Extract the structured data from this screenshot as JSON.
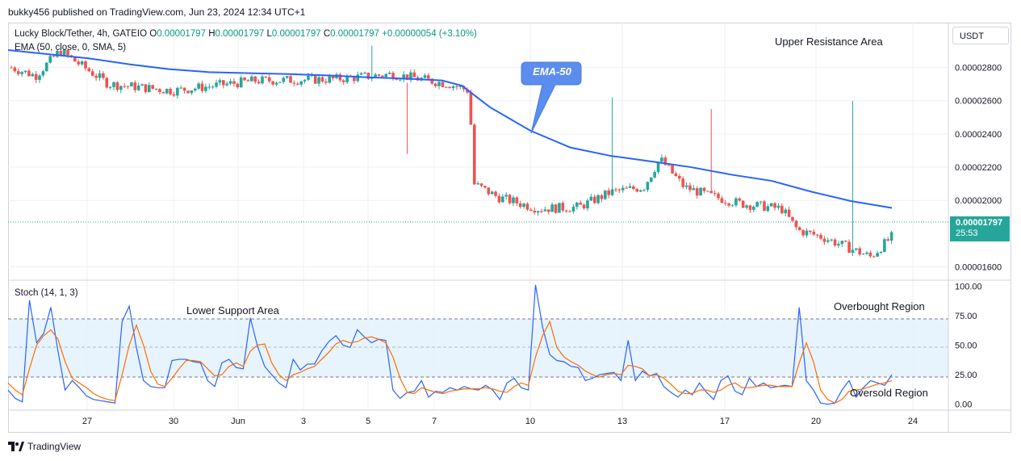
{
  "publisher_text": "bukky456 published on TradingView.com, Jun 23, 2024 12:34 UTC+1",
  "symbol_label": "Lucky Block/Tether, 4h, GATEIO",
  "ohlc": {
    "o_label": "O",
    "o": "0.00001797",
    "h_label": "H",
    "h": "0.00001797",
    "l_label": "L",
    "l": "0.00001797",
    "c_label": "C",
    "c": "0.00001797",
    "change": "+0.00000054 (+3.10%)"
  },
  "ema_label": "EMA (50, close, 0, SMA, 5)",
  "stoch_label": "Stoch (14, 1, 3)",
  "currency": "USDT",
  "last_price": "0.00001797",
  "countdown": "25:53",
  "annotations": {
    "upper_resistance": "Upper Resistance Area",
    "lower_support": "Lower Support Area",
    "ema_callout": "EMA-50",
    "overbought": "Overbought Region",
    "oversold": "Oversold Region"
  },
  "branding": "TradingView",
  "colors": {
    "up": "#26a69a",
    "down": "#ef5350",
    "ema": "#2962ff",
    "stoch_k": "#2962ff",
    "stoch_d": "#ff6d00",
    "band": "#e3f2fd"
  },
  "chart_data": [
    {
      "type": "candlestick",
      "title": "Lucky Block/Tether, 4h, GATEIO",
      "y_ticks": [
        "0.00001600",
        "0.00002000",
        "0.00002200",
        "0.00002400",
        "0.00002600",
        "0.00002800"
      ],
      "ylim": [
        1.52e-05,
        3.07e-05
      ],
      "x_ticks": [
        "27",
        "30",
        "Jun",
        "3",
        "5",
        "7",
        "10",
        "13",
        "17",
        "20",
        "24"
      ],
      "series": [
        {
          "name": "EMA (50, close, 0, SMA, 5)",
          "points": [
            [
              0,
              2.905e-05
            ],
            [
              0.05,
              2.88e-05
            ],
            [
              0.1,
              2.855e-05
            ],
            [
              0.15,
              2.82e-05
            ],
            [
              0.2,
              2.79e-05
            ],
            [
              0.25,
              2.772e-05
            ],
            [
              0.3,
              2.766e-05
            ],
            [
              0.35,
              2.76e-05
            ],
            [
              0.4,
              2.752e-05
            ],
            [
              0.45,
              2.74e-05
            ],
            [
              0.5,
              2.732e-05
            ],
            [
              0.54,
              2.722e-05
            ],
            [
              0.565,
              2.69e-05
            ],
            [
              0.6,
              2.56e-05
            ],
            [
              0.65,
              2.42e-05
            ],
            [
              0.7,
              2.318e-05
            ],
            [
              0.75,
              2.268e-05
            ],
            [
              0.8,
              2.235e-05
            ],
            [
              0.85,
              2.2e-05
            ],
            [
              0.9,
              2.155e-05
            ],
            [
              0.95,
              2.118e-05
            ],
            [
              1.0,
              2.052e-05
            ],
            [
              1.05,
              1.995e-05
            ],
            [
              1.1,
              1.955e-05
            ]
          ]
        }
      ],
      "candles_ohlc_summary": "4h candles from late May to Jun 23; price drifts 0.00002700 -> sharp drop around Jun 7 to ~0.00002000 -> 0.00001797"
    },
    {
      "type": "line",
      "title": "Stoch (14, 1, 3)",
      "y_ticks": [
        "0.00",
        "25.00",
        "50.00",
        "75.00",
        "100.00"
      ],
      "ylim": [
        -5,
        105
      ],
      "levels": [
        20,
        50,
        80
      ],
      "series": [
        {
          "name": "%K",
          "values": [
            12,
            5,
            2,
            88,
            52,
            60,
            82,
            45,
            12,
            20,
            14,
            7,
            4,
            3,
            2,
            1,
            70,
            83,
            48,
            20,
            15,
            14,
            14,
            37,
            38,
            38,
            36,
            35,
            20,
            15,
            35,
            38,
            31,
            30,
            73,
            49,
            32,
            25,
            18,
            14,
            38,
            29,
            34,
            34,
            45,
            53,
            58,
            50,
            48,
            63,
            57,
            52,
            55,
            54,
            12,
            5,
            10,
            11,
            20,
            6,
            11,
            10,
            14,
            12,
            15,
            13,
            12,
            16,
            12,
            4,
            18,
            22,
            14,
            12,
            101,
            65,
            42,
            37,
            36,
            32,
            31,
            20,
            22,
            25,
            26,
            27,
            20,
            54,
            20,
            28,
            24,
            26,
            15,
            10,
            6,
            12,
            8,
            18,
            10,
            4,
            20,
            24,
            11,
            8,
            22,
            15,
            18,
            14,
            15,
            16,
            15,
            82,
            20,
            12,
            1,
            0,
            1,
            12,
            20,
            6,
            14,
            20,
            18,
            16,
            25
          ]
        },
        {
          "name": "%D",
          "values": [
            18,
            12,
            8,
            30,
            50,
            58,
            63,
            55,
            36,
            22,
            18,
            14,
            9,
            6,
            4,
            3,
            25,
            50,
            67,
            50,
            28,
            17,
            15,
            22,
            30,
            37,
            37,
            36,
            30,
            24,
            25,
            32,
            35,
            32,
            45,
            50,
            51,
            35,
            25,
            20,
            25,
            27,
            30,
            32,
            38,
            44,
            51,
            54,
            52,
            53,
            56,
            57,
            55,
            52,
            40,
            22,
            10,
            9,
            14,
            12,
            10,
            9,
            11,
            12,
            13,
            13,
            13,
            14,
            13,
            11,
            10,
            15,
            18,
            16,
            40,
            58,
            70,
            48,
            40,
            36,
            33,
            28,
            25,
            23,
            25,
            26,
            25,
            33,
            32,
            30,
            24,
            25,
            22,
            17,
            11,
            9,
            9,
            12,
            12,
            10,
            12,
            16,
            18,
            14,
            14,
            15,
            16,
            16,
            15,
            15,
            15,
            35,
            52,
            36,
            12,
            4,
            1,
            4,
            11,
            12,
            13,
            15,
            17,
            18,
            20
          ]
        }
      ]
    }
  ]
}
